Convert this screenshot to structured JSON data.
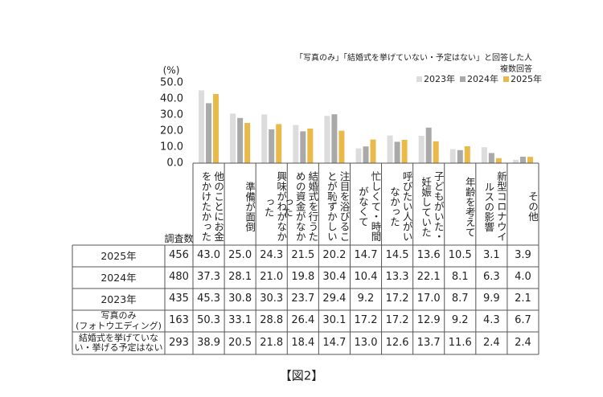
{
  "chart_data": {
    "type": "bar",
    "unit_label": "(%)",
    "note_title": "「写真のみ」「結婚式を挙げていない・予定はない」と回答した人",
    "note_sub": "複数回答",
    "categories": [
      "他のことにお金をかけたかった",
      "準備が面倒",
      "興味がわかなかった",
      "結婚式を行うための資金がなかった",
      "注目を浴びることが恥ずかしい",
      "忙しくて・時間がなくて",
      "呼びたい人がいなかった",
      "子どもがいた・妊娠していた",
      "年齢を考えて",
      "新型コロナウイルスの影響",
      "その他"
    ],
    "ylim": [
      0,
      50
    ],
    "yticks": [
      {
        "value": 0,
        "label": "0.0"
      },
      {
        "value": 10,
        "label": "10.0"
      },
      {
        "value": 20,
        "label": "20.0"
      },
      {
        "value": 30,
        "label": "30.0"
      },
      {
        "value": 40,
        "label": "40.0"
      },
      {
        "value": 50,
        "label": "50.0"
      }
    ],
    "series": [
      {
        "name": "2023年",
        "color": "#dcdcdc",
        "count": 435,
        "values": [
          45.3,
          30.8,
          30.3,
          23.7,
          29.4,
          9.2,
          17.2,
          17.0,
          8.7,
          9.9,
          2.1
        ],
        "value_labels": [
          "45.3",
          "30.8",
          "30.3",
          "23.7",
          "29.4",
          "9.2",
          "17.2",
          "17.0",
          "8.7",
          "9.9",
          "2.1"
        ]
      },
      {
        "name": "2024年",
        "color": "#a9a9a9",
        "count": 480,
        "values": [
          37.3,
          28.1,
          21.0,
          19.8,
          30.4,
          10.4,
          13.3,
          22.1,
          8.1,
          6.3,
          4.0
        ],
        "value_labels": [
          "37.3",
          "28.1",
          "21.0",
          "19.8",
          "30.4",
          "10.4",
          "13.3",
          "22.1",
          "8.1",
          "6.3",
          "4.0"
        ]
      },
      {
        "name": "2025年",
        "color": "#e9b949",
        "count": 456,
        "values": [
          43.0,
          25.0,
          24.3,
          21.5,
          20.2,
          14.7,
          14.5,
          13.6,
          10.5,
          3.1,
          3.9
        ],
        "value_labels": [
          "43.0",
          "25.0",
          "24.3",
          "21.5",
          "20.2",
          "14.7",
          "14.5",
          "13.6",
          "10.5",
          "3.1",
          "3.9"
        ]
      }
    ]
  },
  "table": {
    "count_header": "調査数",
    "extra_rows": [
      {
        "label": "写真のみ\n(フォトウエディング)",
        "count": 163,
        "cells": [
          "50.3",
          "33.1",
          "28.8",
          "26.4",
          "30.1",
          "17.2",
          "17.2",
          "12.9",
          "9.2",
          "4.3",
          "6.7"
        ]
      },
      {
        "label": "結婚式を挙げていな\nい・挙げる予定はない",
        "count": 293,
        "cells": [
          "38.9",
          "20.5",
          "21.8",
          "18.4",
          "14.7",
          "13.0",
          "12.6",
          "13.7",
          "11.6",
          "2.4",
          "2.4"
        ]
      }
    ]
  },
  "caption": "【図2】"
}
